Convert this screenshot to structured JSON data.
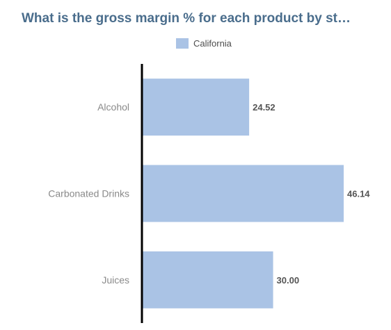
{
  "chart_data": {
    "type": "bar",
    "orientation": "horizontal",
    "title": "What is the gross margin % for each product by st…",
    "categories": [
      "Alcohol",
      "Carbonated Drinks",
      "Juices"
    ],
    "series": [
      {
        "name": "California",
        "values": [
          24.52,
          46.14,
          30.0
        ],
        "value_labels": [
          "24.52",
          "46.14",
          "30.00"
        ],
        "color": "#aac3e5"
      }
    ],
    "xlim": [
      0,
      46.14
    ],
    "legend_position": "top-center",
    "grid": false
  },
  "colors": {
    "title": "#4a6d8c",
    "category_label": "#8a8a8a",
    "value_label": "#555555",
    "axis": "#000000"
  }
}
